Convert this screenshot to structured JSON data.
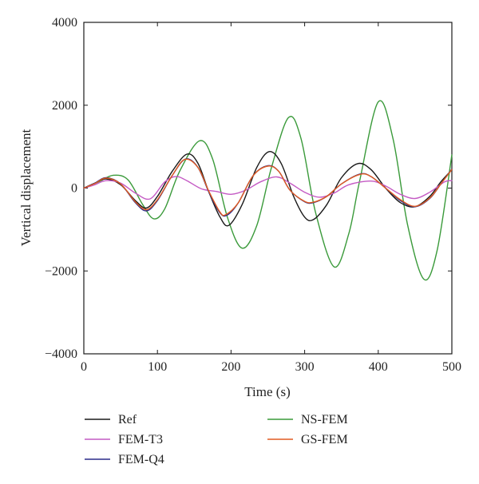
{
  "chart_data": {
    "type": "line",
    "xlabel": "Time (s)",
    "ylabel": "Vertical displacement",
    "xlim": [
      0,
      500
    ],
    "ylim": [
      -4000,
      4000
    ],
    "xticks": [
      0,
      100,
      200,
      300,
      400,
      500
    ],
    "yticks": [
      -4000,
      -2000,
      0,
      2000,
      4000
    ],
    "xtick_labels": [
      "0",
      "100",
      "200",
      "300",
      "400",
      "500"
    ],
    "ytick_labels": [
      "−4000",
      "−2000",
      "0",
      "2000",
      "4000"
    ],
    "grid": false,
    "legend_position": "bottom",
    "series": [
      {
        "name": "Ref",
        "color": "#1a1a1a",
        "x": [
          0,
          15,
          30,
          50,
          70,
          85,
          100,
          120,
          140,
          155,
          170,
          185,
          197,
          215,
          235,
          252,
          268,
          285,
          300,
          312,
          330,
          350,
          372,
          390,
          410,
          430,
          450,
          470,
          485,
          500
        ],
        "y": [
          0,
          120,
          220,
          80,
          -300,
          -480,
          -200,
          400,
          820,
          600,
          -100,
          -700,
          -900,
          -400,
          500,
          880,
          600,
          -200,
          -700,
          -760,
          -400,
          250,
          590,
          450,
          0,
          -350,
          -450,
          -200,
          150,
          440
        ]
      },
      {
        "name": "FEM-T3",
        "color": "#c45ac4",
        "x": [
          0,
          15,
          30,
          50,
          70,
          90,
          110,
          125,
          140,
          160,
          180,
          200,
          220,
          240,
          262,
          280,
          300,
          320,
          340,
          360,
          390,
          410,
          430,
          450,
          470,
          490,
          500
        ],
        "y": [
          0,
          80,
          180,
          120,
          -120,
          -260,
          150,
          280,
          180,
          -20,
          -80,
          -150,
          -50,
          150,
          270,
          120,
          -100,
          -220,
          -120,
          80,
          170,
          50,
          -150,
          -250,
          -100,
          150,
          180
        ]
      },
      {
        "name": "FEM-Q4",
        "color": "#2b2b8a",
        "x": [
          0,
          15,
          30,
          50,
          70,
          85,
          100,
          120,
          138,
          155,
          170,
          185,
          195,
          210,
          230,
          250,
          265,
          280,
          300,
          312,
          330,
          350,
          375,
          390,
          410,
          430,
          450,
          470,
          485,
          500
        ],
        "y": [
          0,
          120,
          250,
          100,
          -350,
          -550,
          -300,
          300,
          700,
          500,
          -100,
          -600,
          -650,
          -350,
          300,
          540,
          400,
          -50,
          -330,
          -350,
          -200,
          100,
          340,
          280,
          0,
          -300,
          -450,
          -250,
          100,
          460
        ]
      },
      {
        "name": "NS-FEM",
        "color": "#3a9a3a",
        "x": [
          0,
          20,
          40,
          60,
          80,
          95,
          110,
          130,
          157,
          175,
          195,
          215,
          235,
          255,
          278,
          295,
          315,
          340,
          360,
          375,
          400,
          420,
          440,
          462,
          480,
          500
        ],
        "y": [
          0,
          150,
          310,
          200,
          -400,
          -740,
          -500,
          400,
          1140,
          700,
          -700,
          -1450,
          -900,
          500,
          1700,
          1200,
          -600,
          -1900,
          -1100,
          200,
          2080,
          1200,
          -900,
          -2200,
          -1500,
          800
        ]
      },
      {
        "name": "GS-FEM",
        "color": "#e05a20",
        "x": [
          0,
          15,
          30,
          50,
          70,
          85,
          100,
          120,
          137,
          155,
          170,
          185,
          193,
          210,
          230,
          250,
          265,
          280,
          300,
          312,
          330,
          350,
          375,
          390,
          410,
          430,
          450,
          470,
          485,
          500
        ],
        "y": [
          0,
          110,
          240,
          100,
          -330,
          -520,
          -280,
          300,
          690,
          500,
          -80,
          -580,
          -640,
          -350,
          300,
          530,
          400,
          -50,
          -320,
          -340,
          -200,
          100,
          330,
          280,
          0,
          -280,
          -440,
          -240,
          100,
          450
        ]
      }
    ]
  }
}
